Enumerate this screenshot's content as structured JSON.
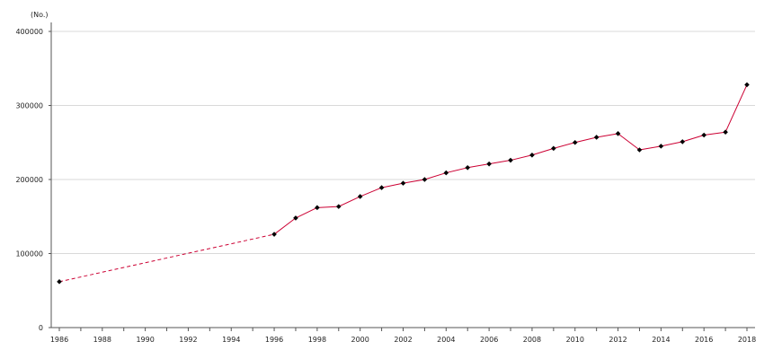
{
  "chart_data": {
    "type": "line",
    "unit_label": "(No.)",
    "ylim": [
      0,
      400000
    ],
    "y_ticks": [
      "0",
      "100000",
      "200000",
      "300000",
      "400000"
    ],
    "xlim": [
      1986,
      2018
    ],
    "x_ticks": [
      "1986",
      "1988",
      "1990",
      "1992",
      "1994",
      "1996",
      "1998",
      "2000",
      "2002",
      "2004",
      "2006",
      "2008",
      "2010",
      "2012",
      "2014",
      "2016",
      "2018"
    ],
    "grid": "horizontal",
    "line_color": "#cc0033",
    "marker_color": "#000000",
    "series": [
      {
        "x": [
          1986,
          1996,
          1997,
          1998,
          1999,
          2000,
          2001,
          2002,
          2003,
          2004,
          2005,
          2006,
          2007,
          2008,
          2009,
          2010,
          2011,
          2012,
          2013,
          2014,
          2015,
          2016,
          2017,
          2018
        ],
        "values": [
          62000,
          126000,
          148000,
          162000,
          163500,
          177000,
          189000,
          195000,
          200000,
          209000,
          216000,
          221000,
          226000,
          233000,
          242000,
          250000,
          257000,
          262000,
          240000,
          245000,
          251000,
          260000,
          264000,
          328000
        ],
        "dashed_segments": [
          [
            1986,
            1996
          ]
        ]
      }
    ]
  }
}
